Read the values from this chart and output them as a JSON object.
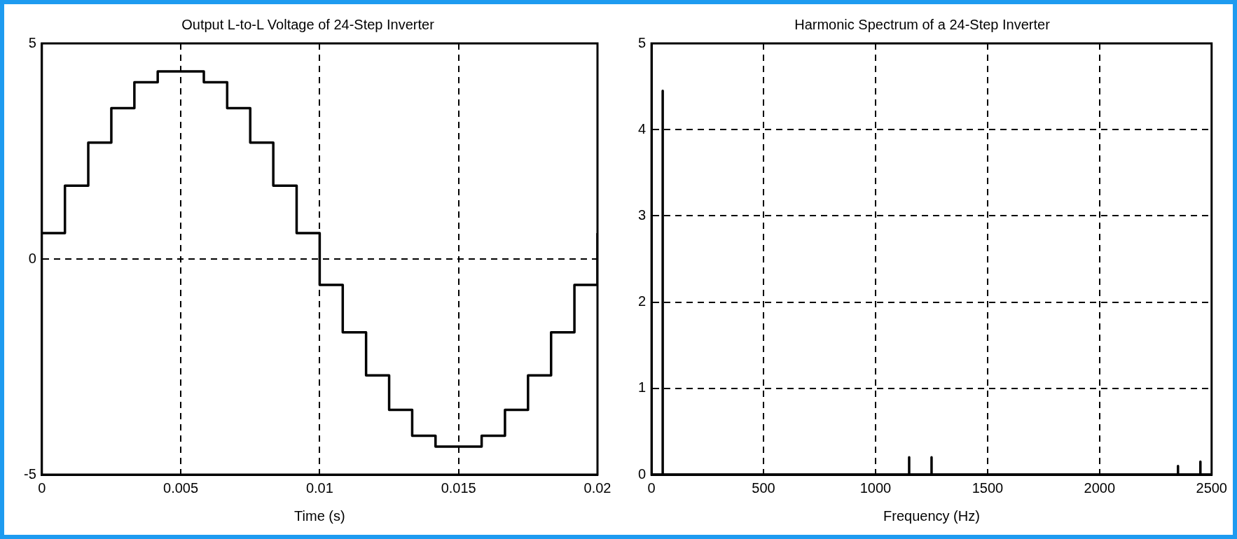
{
  "chart_data": [
    {
      "type": "step",
      "title": "Output L-to-L Voltage of 24-Step Inverter",
      "xlabel": "Time (s)",
      "xlim": [
        0,
        0.02
      ],
      "xticks": [
        0,
        0.005,
        0.01,
        0.015,
        0.02
      ],
      "ylim": [
        -5,
        5
      ],
      "yticks": [
        -5,
        0,
        5
      ],
      "grid": true,
      "marker": "none",
      "series": [
        {
          "color": "#000000",
          "x": [
            0,
            0.00083,
            0.00167,
            0.0025,
            0.00333,
            0.00417,
            0.005,
            0.00583,
            0.00667,
            0.0075,
            0.00833,
            0.00917,
            0.01,
            0.01083,
            0.01167,
            0.0125,
            0.01333,
            0.01417,
            0.015,
            0.01583,
            0.01667,
            0.0175,
            0.01833,
            0.01917,
            0.02
          ],
          "values": [
            0.6,
            1.7,
            2.7,
            3.5,
            4.1,
            4.35,
            4.35,
            4.1,
            3.5,
            2.7,
            1.7,
            0.6,
            -0.6,
            -1.7,
            -2.7,
            -3.5,
            -4.1,
            -4.35,
            -4.35,
            -4.1,
            -3.5,
            -2.7,
            -1.7,
            -0.6,
            0.6
          ]
        }
      ]
    },
    {
      "type": "line",
      "title": "Harmonic Spectrum of a 24-Step Inverter",
      "xlabel": "Frequency (Hz)",
      "xlim": [
        0,
        2500
      ],
      "xticks": [
        0,
        500,
        1000,
        1500,
        2000,
        2500
      ],
      "ylim": [
        0,
        5
      ],
      "yticks": [
        0,
        1,
        2,
        3,
        4,
        5
      ],
      "grid": true,
      "marker": "none",
      "series": [
        {
          "color": "#000000",
          "x": [
            0,
            50,
            50,
            50,
            1150,
            1150,
            1150,
            1250,
            1250,
            1250,
            2350,
            2350,
            2350,
            2450,
            2450,
            2450,
            2500
          ],
          "values": [
            0,
            0,
            4.45,
            0,
            0,
            0.2,
            0,
            0,
            0.2,
            0,
            0,
            0.1,
            0,
            0,
            0.15,
            0,
            0
          ]
        }
      ]
    }
  ]
}
